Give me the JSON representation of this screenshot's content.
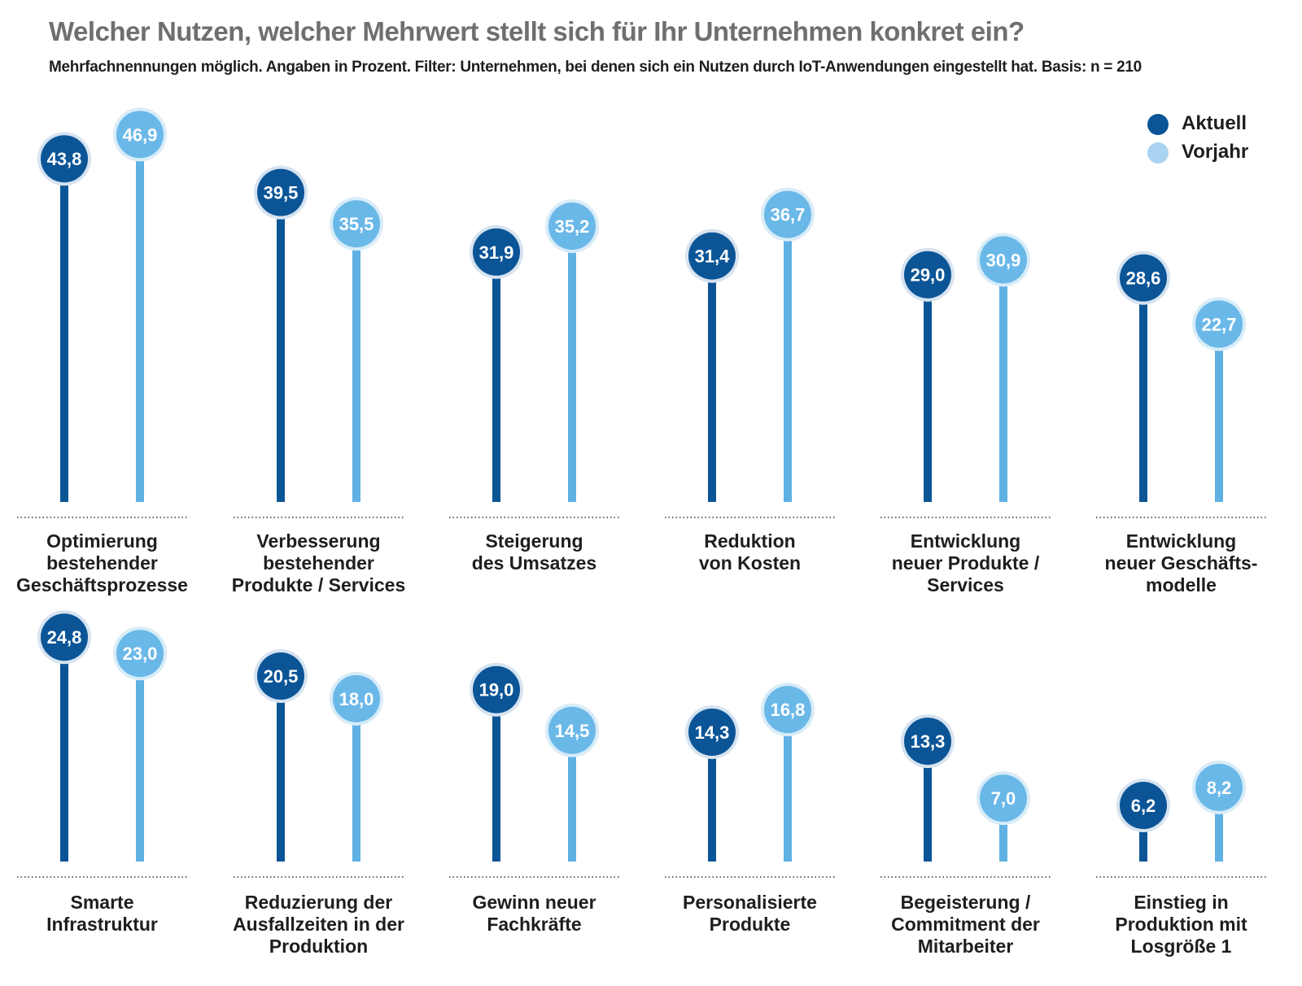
{
  "title": "Welcher Nutzen, welcher Mehrwert stellt sich für Ihr Unternehmen konkret ein?",
  "subtitle": "Mehrfachnennungen möglich. Angaben in Prozent. Filter: Unternehmen, bei denen sich ein Nutzen durch IoT-Anwendungen eingestellt hat. Basis: n = 210",
  "legend": [
    {
      "label": "Aktuell",
      "color": "#0b5597"
    },
    {
      "label": "Vorjahr",
      "color": "#a9d3f0"
    }
  ],
  "colors": {
    "aktuell_stem": "#0b5597",
    "aktuell_circle": "#0b5597",
    "aktuell_halo": "#d6e3f0",
    "vorjahr_stem": "#5fb0e3",
    "vorjahr_circle": "#6ab8e8",
    "vorjahr_halo": "#d8ecf8",
    "label_text": "#ffffff"
  },
  "chart_data": {
    "type": "lollipop",
    "series": [
      {
        "name": "Aktuell",
        "values": [
          43.8,
          39.5,
          31.9,
          31.4,
          29.0,
          28.6,
          24.8,
          20.5,
          19.0,
          14.3,
          13.3,
          6.2
        ]
      },
      {
        "name": "Vorjahr",
        "values": [
          46.9,
          35.5,
          35.2,
          36.7,
          30.9,
          22.7,
          23.0,
          18.0,
          14.5,
          16.8,
          7.0,
          8.2
        ]
      }
    ],
    "value_labels": {
      "aktuell": [
        "43,8",
        "39,5",
        "31,9",
        "31,4",
        "29,0",
        "28,6",
        "24,8",
        "20,5",
        "19,0",
        "14,3",
        "13,3",
        "6,2"
      ],
      "vorjahr": [
        "46,9",
        "35,5",
        "35,2",
        "36,7",
        "30,9",
        "22,7",
        "23,0",
        "18,0",
        "14,5",
        "16,8",
        "7,0",
        "8,2"
      ]
    },
    "categories": [
      "Optimierung\nbestehender\nGeschäftsprozesse",
      "Verbesserung\nbestehender\nProdukte / Services",
      "Steigerung\ndes Umsatzes",
      "Reduktion\nvon Kosten",
      "Entwicklung\nneuer Produkte /\nServices",
      "Entwicklung\nneuer Geschäfts-\nmodelle",
      "Smarte\nInfrastruktur",
      "Reduzierung der\nAusfallzeiten in der\nProduktion",
      "Gewinn neuer\nFachkräfte",
      "Personalisierte\nProdukte",
      "Begeisterung /\nCommitment der\nMitarbeiter",
      "Einstieg in\nProduktion mit\nLosgröße 1"
    ],
    "ylim": [
      0,
      50
    ],
    "unit": "Prozent",
    "grid": false,
    "legend_position": "top-right",
    "rows": 2,
    "per_row": 6
  }
}
